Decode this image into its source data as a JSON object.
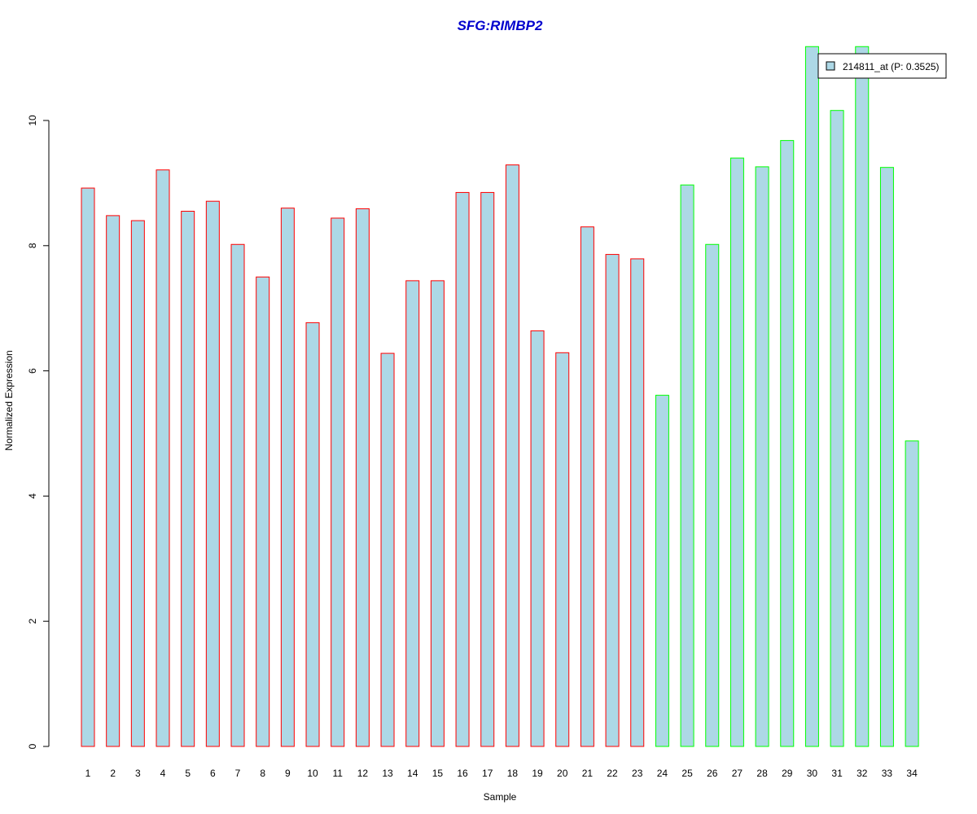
{
  "chart_data": {
    "type": "bar",
    "title": "SFG:RIMBP2",
    "xlabel": "Sample",
    "ylabel": "Normalized Expression",
    "categories": [
      "1",
      "2",
      "3",
      "4",
      "5",
      "6",
      "7",
      "8",
      "9",
      "10",
      "11",
      "12",
      "13",
      "14",
      "15",
      "16",
      "17",
      "18",
      "19",
      "20",
      "21",
      "22",
      "23",
      "24",
      "25",
      "26",
      "27",
      "28",
      "29",
      "30",
      "31",
      "32",
      "33",
      "34"
    ],
    "series": [
      {
        "name": "214811_at (P: 0.3525)",
        "values": [
          8.92,
          8.48,
          8.4,
          9.21,
          8.55,
          8.71,
          8.02,
          7.5,
          8.6,
          6.77,
          8.44,
          8.59,
          6.28,
          7.44,
          7.44,
          8.85,
          8.85,
          9.29,
          6.64,
          6.29,
          8.3,
          7.86,
          7.79,
          5.61,
          8.97,
          8.02,
          9.4,
          9.26,
          9.68,
          11.18,
          10.16,
          11.18,
          9.25,
          4.88
        ]
      }
    ],
    "bar_fill": "#add8e6",
    "group_border_colors": [
      "#ff0000",
      "#ff0000",
      "#ff0000",
      "#ff0000",
      "#ff0000",
      "#ff0000",
      "#ff0000",
      "#ff0000",
      "#ff0000",
      "#ff0000",
      "#ff0000",
      "#ff0000",
      "#ff0000",
      "#ff0000",
      "#ff0000",
      "#ff0000",
      "#ff0000",
      "#ff0000",
      "#ff0000",
      "#ff0000",
      "#ff0000",
      "#ff0000",
      "#ff0000",
      "#00ff00",
      "#00ff00",
      "#00ff00",
      "#00ff00",
      "#00ff00",
      "#00ff00",
      "#00ff00",
      "#00ff00",
      "#00ff00",
      "#00ff00",
      "#00ff00"
    ],
    "title_color": "#0000cd",
    "yticks": [
      0,
      2,
      4,
      6,
      8,
      10
    ],
    "ylim": [
      0,
      11.18
    ],
    "legend_position": "top-right",
    "grid": false
  }
}
